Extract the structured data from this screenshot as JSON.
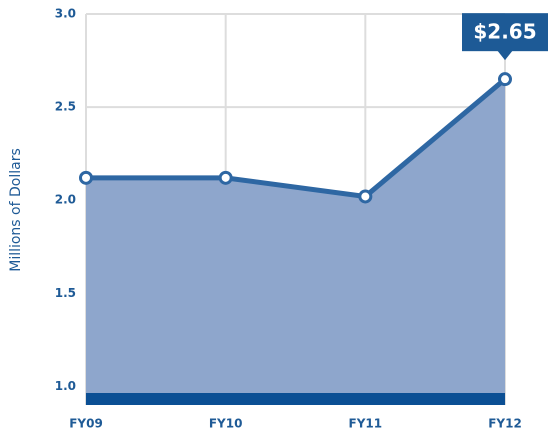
{
  "chart_data": {
    "type": "area",
    "ylabel": "Millions of Dollars",
    "categories": [
      "FY09",
      "FY10",
      "FY11",
      "FY12"
    ],
    "values": [
      2.12,
      2.12,
      2.02,
      2.65
    ],
    "value_labels": [
      null,
      null,
      null,
      "$2.65"
    ],
    "color": "#2e67a3",
    "fill": "#8ea6cc",
    "ylim": [
      0.9,
      3.0
    ],
    "yticks": [
      {
        "value": 1,
        "label": "1.0"
      },
      1.5,
      {
        "value": 2,
        "label": "2.0"
      },
      2.5,
      {
        "value": 3,
        "label": "3.0"
      }
    ],
    "grid": true
  }
}
